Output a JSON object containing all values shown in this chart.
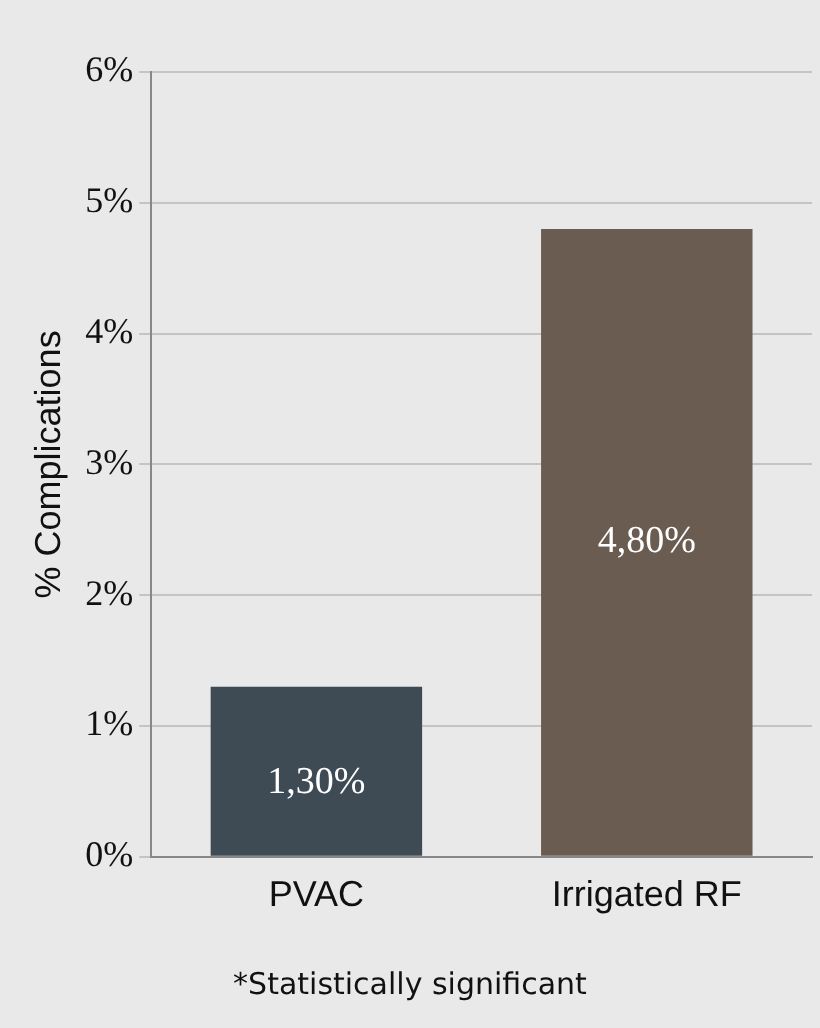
{
  "chart_data": {
    "type": "bar",
    "ylabel": "% Complications",
    "categories": [
      "PVAC",
      "Irrigated RF"
    ],
    "values": [
      1.3,
      4.8
    ],
    "colors": [
      "#3e4a54",
      "#6b5c52"
    ],
    "value_labels": [
      "1,30%",
      "4,80%"
    ],
    "ylim": [
      0,
      6
    ],
    "yticks": [
      {
        "value": 0,
        "label": "0%"
      },
      {
        "value": 1,
        "label": "1%"
      },
      {
        "value": 2,
        "label": "2%"
      },
      {
        "value": 3,
        "label": "3%"
      },
      {
        "value": 4,
        "label": "4%"
      },
      {
        "value": 5,
        "label": "5%"
      },
      {
        "value": 6,
        "label": "6%"
      }
    ],
    "grid": "y",
    "legend": false,
    "annotations": [
      "*Statistically significant"
    ]
  }
}
